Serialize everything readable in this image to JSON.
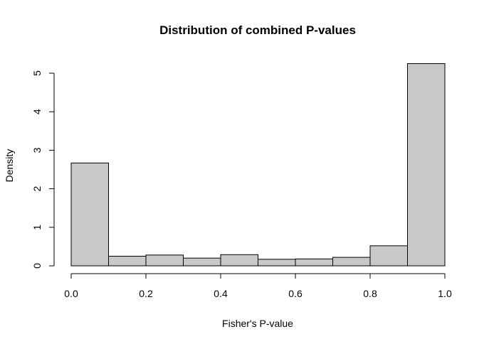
{
  "chart_data": {
    "type": "bar",
    "title": "Distribution of combined P-values",
    "xlabel": "Fisher's P-value",
    "ylabel": "Density",
    "xlim": [
      0,
      1
    ],
    "ylim": [
      0,
      5.25
    ],
    "bin_edges": [
      0.0,
      0.1,
      0.2,
      0.3,
      0.4,
      0.5,
      0.6,
      0.7,
      0.8,
      0.9,
      1.0
    ],
    "values": [
      2.67,
      0.25,
      0.28,
      0.2,
      0.29,
      0.17,
      0.18,
      0.22,
      0.52,
      5.25
    ],
    "x_ticks": [
      0.0,
      0.2,
      0.4,
      0.6,
      0.8,
      1.0
    ],
    "x_tick_labels": [
      "0.0",
      "0.2",
      "0.4",
      "0.6",
      "0.8",
      "1.0"
    ],
    "y_ticks": [
      0,
      1,
      2,
      3,
      4,
      5
    ],
    "y_tick_labels": [
      "0",
      "1",
      "2",
      "3",
      "4",
      "5"
    ],
    "bar_fill": "#c8c8c8",
    "bar_stroke": "#000000",
    "grid": false
  }
}
